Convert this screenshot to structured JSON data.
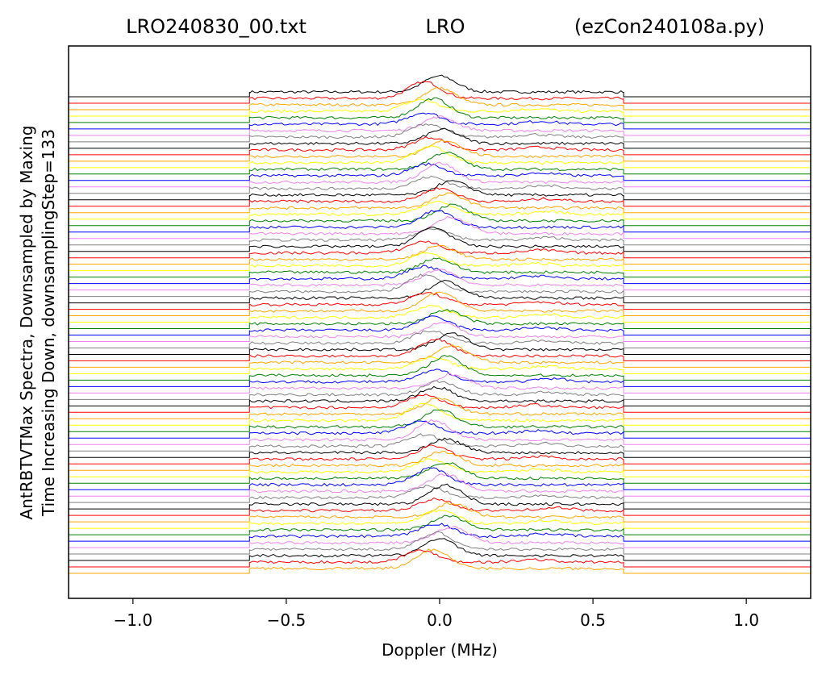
{
  "chart_data": {
    "type": "line",
    "title_left": "LRO240830_00.txt",
    "title_center": "LRO",
    "title_right": "(ezCon240108a.py)",
    "xlabel": "Doppler (MHz)",
    "ylabel_line1": "AntRBTVTMax Spectra, Downsampled by Maxing",
    "ylabel_line2": "Time Increasing Down, downsamplingStep=133",
    "xlim": [
      -1.21,
      1.21
    ],
    "xticks": [
      {
        "value": -1.0,
        "label": "−1.0"
      },
      {
        "value": -0.5,
        "label": "−0.5"
      },
      {
        "value": 0.0,
        "label": "0.0"
      },
      {
        "value": 0.5,
        "label": "0.5"
      },
      {
        "value": 1.0,
        "label": "1.0"
      }
    ],
    "y_ticks_shown": false,
    "grid": false,
    "band_mhz": [
      -0.62,
      0.6
    ],
    "trace_count": 75,
    "color_cycle": [
      "#000000",
      "#ff0000",
      "#ffa500",
      "#ffff00",
      "#008000",
      "#0000ff",
      "#ee82ee",
      "#808080"
    ],
    "series": [
      {
        "start_color": "#000000",
        "peaks": [
          {
            "x": 0.02,
            "h": 1.0
          }
        ]
      },
      {
        "start_color": "#000000",
        "peaks": [
          {
            "x": -0.03,
            "h": 0.8
          }
        ]
      },
      {
        "start_color": "#000000",
        "peaks": [
          {
            "x": 0.02,
            "h": 0.9
          }
        ]
      },
      {
        "start_color": "#000000",
        "peaks": [
          {
            "x": -0.04,
            "h": 0.7
          },
          {
            "x": 0.33,
            "h": 0.15
          }
        ]
      },
      {
        "start_color": "#000000",
        "peaks": [
          {
            "x": 0.0,
            "h": 0.9
          }
        ]
      },
      {
        "start_color": "#000000",
        "peaks": [
          {
            "x": -0.03,
            "h": 0.6
          },
          {
            "x": 0.35,
            "h": 0.15
          }
        ]
      },
      {
        "start_color": "#000000",
        "peaks": [
          {
            "x": 0.02,
            "h": 0.8
          }
        ]
      },
      {
        "start_color": "#000000",
        "peaks": [
          {
            "x": -0.02,
            "h": 0.6
          },
          {
            "x": 0.33,
            "h": 0.12
          }
        ]
      },
      {
        "start_color": "#000000",
        "peaks": [
          {
            "x": 0.01,
            "h": 0.7
          }
        ]
      },
      {
        "start_color": "#000000",
        "peaks": [
          {
            "x": -0.03,
            "h": 0.7
          },
          {
            "x": 0.33,
            "h": 0.15
          }
        ]
      }
    ]
  }
}
